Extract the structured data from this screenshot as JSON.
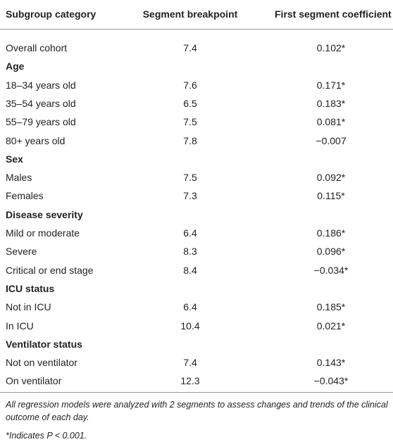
{
  "table": {
    "header": [
      "Subgroup category",
      "Segment breakpoint",
      "First segment coefficient"
    ],
    "rows": [
      [
        "Overall cohort",
        "7.4",
        "0.102*"
      ],
      [
        "Age"
      ],
      [
        "18–34 years old",
        "7.6",
        "0.171*"
      ],
      [
        "35–54 years old",
        "6.5",
        "0.183*"
      ],
      [
        "55–79 years old",
        "7.5",
        "0.081*"
      ],
      [
        "80+ years old",
        "7.8",
        "−0.007"
      ],
      [
        "Sex"
      ],
      [
        "Males",
        "7.5",
        "0.092*"
      ],
      [
        "Females",
        "7.3",
        "0.115*"
      ],
      [
        "Disease severity"
      ],
      [
        "Mild or moderate",
        "6.4",
        "0.186*"
      ],
      [
        "Severe",
        "8.3",
        "0.096*"
      ],
      [
        "Critical or end stage",
        "8.4",
        "−0.034*"
      ],
      [
        "ICU status"
      ],
      [
        "Not in ICU",
        "6.4",
        "0.185*"
      ],
      [
        "In ICU",
        "10.4",
        "0.021*"
      ],
      [
        "Ventilator status"
      ],
      [
        "Not on ventilator",
        "7.4",
        "0.143*"
      ],
      [
        "On ventilator",
        "12.3",
        "−0.043*"
      ]
    ],
    "footnotes": [
      "All regression models were analyzed with 2 segments to assess changes and trends of the clinical outcome of each day.",
      "*Indicates P < 0.001."
    ]
  }
}
